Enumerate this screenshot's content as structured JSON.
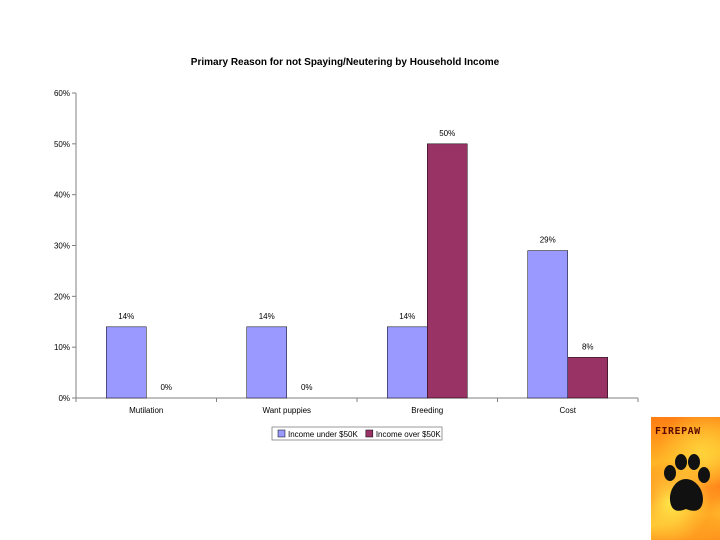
{
  "chart_data": {
    "type": "bar",
    "title": "Primary Reason for not Spaying/Neutering by Household Income",
    "categories": [
      "Mutilation",
      "Want puppies",
      "Breeding",
      "Cost"
    ],
    "series": [
      {
        "name": "Income under $50K",
        "values": [
          14,
          14,
          14,
          29
        ],
        "labels": [
          "14%",
          "14%",
          "14%",
          "29%"
        ],
        "color": "#9999ff"
      },
      {
        "name": "Income over $50K",
        "values": [
          0,
          0,
          50,
          8
        ],
        "labels": [
          "0%",
          "0%",
          "50%",
          "8%"
        ],
        "color": "#993366"
      }
    ],
    "ylim": [
      0,
      60
    ],
    "yticks": [
      "0%",
      "10%",
      "20%",
      "30%",
      "40%",
      "50%",
      "60%"
    ],
    "grid": false,
    "legend_position": "bottom"
  },
  "logo": {
    "text": "FIREPAW"
  }
}
